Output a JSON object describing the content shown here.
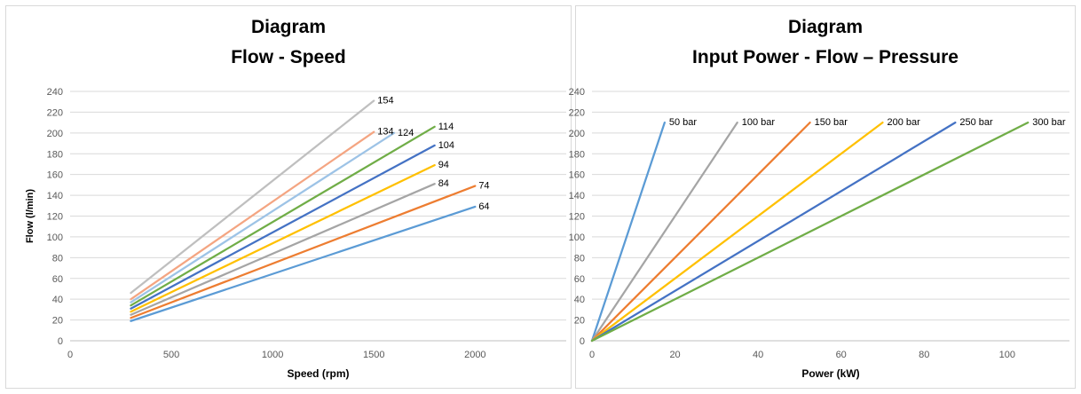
{
  "colors": [
    "#5b9bd5",
    "#ed7d31",
    "#a5a5a5",
    "#ffc000",
    "#4472c4",
    "#70ad47",
    "#9dc3e6",
    "#f4a582",
    "#bfbfbf"
  ],
  "chart_data": [
    {
      "type": "line",
      "title": "Diagram",
      "subtitle": "Flow - Speed",
      "xlabel": "Speed (rpm)",
      "ylabel": "Flow (l/min)",
      "xlim": [
        0,
        2450
      ],
      "ylim": [
        0,
        240
      ],
      "xticks": [
        0,
        500,
        1000,
        1500,
        2000
      ],
      "yticks": [
        0,
        20,
        40,
        60,
        80,
        100,
        120,
        140,
        160,
        180,
        200,
        220,
        240
      ],
      "grid": "horizontal",
      "series": [
        {
          "name": "64",
          "color": "#5b9bd5",
          "x": [
            300,
            2000
          ],
          "y": [
            19,
            129
          ]
        },
        {
          "name": "74",
          "color": "#ed7d31",
          "x": [
            300,
            2000
          ],
          "y": [
            22,
            149
          ]
        },
        {
          "name": "84",
          "color": "#a5a5a5",
          "x": [
            300,
            1800
          ],
          "y": [
            25,
            151
          ]
        },
        {
          "name": "94",
          "color": "#ffc000",
          "x": [
            300,
            1800
          ],
          "y": [
            28,
            169
          ]
        },
        {
          "name": "104",
          "color": "#4472c4",
          "x": [
            300,
            1800
          ],
          "y": [
            31,
            188
          ]
        },
        {
          "name": "114",
          "color": "#70ad47",
          "x": [
            300,
            1800
          ],
          "y": [
            34,
            206
          ]
        },
        {
          "name": "124",
          "color": "#9dc3e6",
          "x": [
            300,
            1600
          ],
          "y": [
            37,
            200
          ]
        },
        {
          "name": "134",
          "color": "#f4a582",
          "x": [
            300,
            1500
          ],
          "y": [
            40,
            201
          ]
        },
        {
          "name": "154",
          "color": "#bfbfbf",
          "x": [
            300,
            1500
          ],
          "y": [
            46,
            231
          ]
        }
      ]
    },
    {
      "type": "line",
      "title": "Diagram",
      "subtitle": "Input Power - Flow – Pressure",
      "xlabel": "Power (kW)",
      "ylabel": "",
      "xlim": [
        0,
        115
      ],
      "ylim": [
        0,
        240
      ],
      "xticks": [
        0,
        20,
        40,
        60,
        80,
        100
      ],
      "yticks": [
        0,
        20,
        40,
        60,
        80,
        100,
        120,
        140,
        160,
        180,
        200,
        220,
        240
      ],
      "grid": "horizontal",
      "series": [
        {
          "name": "50 bar",
          "color": "#5b9bd5",
          "x": [
            0,
            17.5
          ],
          "y": [
            0,
            210
          ]
        },
        {
          "name": "100 bar",
          "color": "#a5a5a5",
          "x": [
            0,
            35
          ],
          "y": [
            0,
            210
          ]
        },
        {
          "name": "150 bar",
          "color": "#ed7d31",
          "x": [
            0,
            52.5
          ],
          "y": [
            0,
            210
          ]
        },
        {
          "name": "200 bar",
          "color": "#ffc000",
          "x": [
            0,
            70
          ],
          "y": [
            0,
            210
          ]
        },
        {
          "name": "250 bar",
          "color": "#4472c4",
          "x": [
            0,
            87.5
          ],
          "y": [
            0,
            210
          ]
        },
        {
          "name": "300 bar",
          "color": "#70ad47",
          "x": [
            0,
            105
          ],
          "y": [
            0,
            210
          ]
        }
      ]
    }
  ]
}
